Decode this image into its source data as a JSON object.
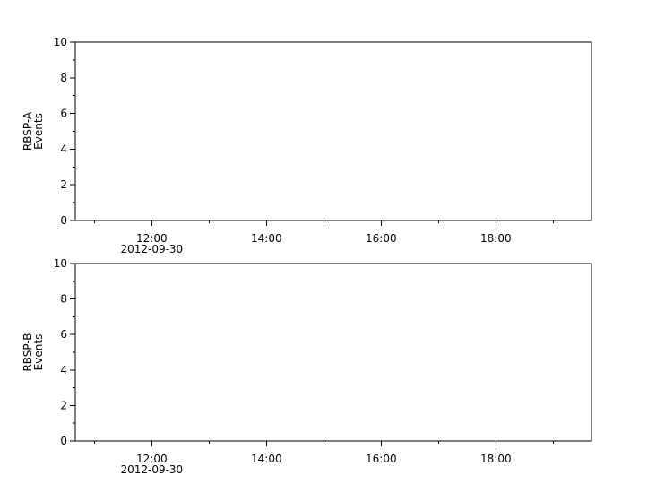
{
  "chart_data": [
    {
      "type": "line",
      "ylabel": [
        "RBSP-A",
        "Events"
      ],
      "ylim": [
        0,
        10
      ],
      "yticks": [
        "0",
        "2",
        "4",
        "6",
        "8",
        "10"
      ],
      "xlim": [
        "2012-09-30T10:40",
        "2012-09-30T19:40"
      ],
      "xticks": [
        "12:00",
        "14:00",
        "16:00",
        "18:00"
      ],
      "xdate_label": "2012-09-30",
      "series": [],
      "grid": false
    },
    {
      "type": "line",
      "ylabel": [
        "RBSP-B",
        "Events"
      ],
      "ylim": [
        0,
        10
      ],
      "yticks": [
        "0",
        "2",
        "4",
        "6",
        "8",
        "10"
      ],
      "xlim": [
        "2012-09-30T10:40",
        "2012-09-30T19:40"
      ],
      "xticks": [
        "12:00",
        "14:00",
        "16:00",
        "18:00"
      ],
      "xdate_label": "2012-09-30",
      "series": [],
      "grid": false
    }
  ]
}
